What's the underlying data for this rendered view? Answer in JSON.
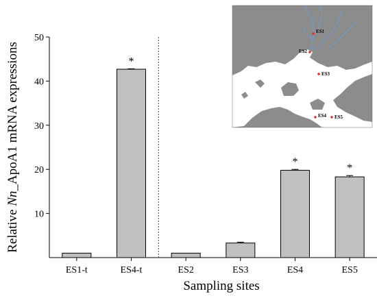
{
  "chart_data": {
    "type": "bar",
    "categories": [
      "ES1-t",
      "ES4-t",
      "ES2",
      "ES3",
      "ES4",
      "ES5"
    ],
    "values": [
      1.0,
      42.7,
      1.0,
      3.3,
      19.8,
      18.3
    ],
    "errors": [
      0,
      0.1,
      0,
      0.2,
      0.2,
      0.3
    ],
    "significance": [
      "",
      "*",
      "",
      "",
      "*",
      "*"
    ],
    "xlabel": "Sampling sites",
    "ylabel_prefix": "Relative ",
    "ylabel_italic": "Nn",
    "ylabel_suffix": "_ApoA1 mRNA expressions",
    "ylim": [
      0,
      50
    ],
    "yticks": [
      10,
      20,
      30,
      40,
      50
    ],
    "divider_after_category": 1,
    "bar_color": "#c0c0c0",
    "grid": false
  },
  "map_inset": {
    "land_color": "#8c8c8c",
    "water_color": "#ffffff",
    "river_color": "#6f9ed1",
    "point_color": "#d93030",
    "sites": [
      {
        "label": "ES1"
      },
      {
        "label": "ES2"
      },
      {
        "label": "ES3"
      },
      {
        "label": "ES4"
      },
      {
        "label": "ES5"
      }
    ]
  }
}
